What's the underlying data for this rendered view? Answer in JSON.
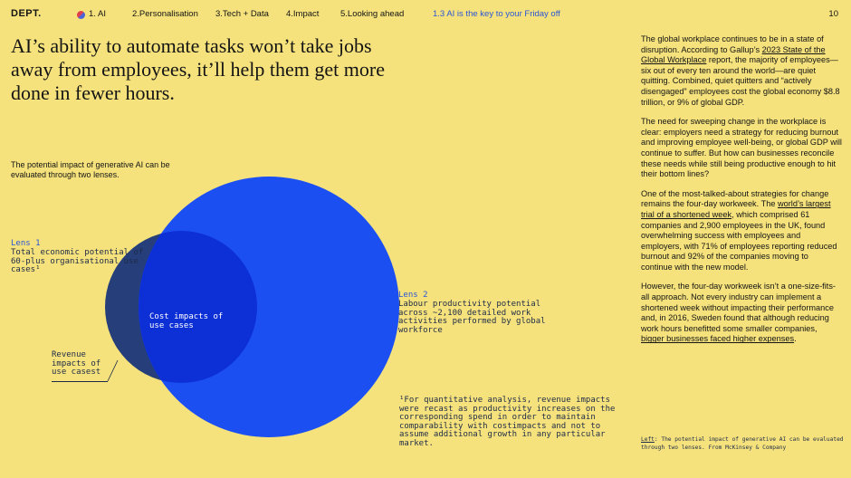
{
  "nav": {
    "logo": "DEPT.",
    "items": [
      "1. AI",
      "2.Personalisation",
      "3.Tech + Data",
      "4.Impact",
      "5.Looking ahead"
    ],
    "active": "1.3 AI is the key to your Friday off",
    "page_number": "10"
  },
  "headline": "AI’s ability to automate tasks won’t take jobs away from employees, it’ll help them get more done in fewer hours.",
  "lenses_intro": "The potential impact of generative AI can be evaluated through two lenses.",
  "diagram": {
    "lens1": {
      "title": "Lens 1",
      "body": "Total economic potential of 60-plus organisational use cases¹"
    },
    "lens2": {
      "title": "Lens 2",
      "body": "Labour productivity potential across ~2,100 detailed work activities performed by global workforce"
    },
    "revenue": "Revenue impacts of use casest",
    "cost": "Cost impacts of use cases",
    "colors": {
      "lens2_circle": "#1c4ff2",
      "cost_circle": "#0d2fd6",
      "revenue_crescent": "#263f7a"
    }
  },
  "footnote": "¹For quantitative analysis, revenue impacts were recast as productivity increases on the corresponding spend in order to maintain comparability with costimpacts and not to assume additional growth in any particular market.",
  "body": {
    "p1": {
      "pre": "The global workplace continues to be in a state of disruption. According to Gallup’s ",
      "link": "2023 State of the Global Workplace",
      "post": " report, the majority of employees—six out of every ten around the world—are quiet quitting. Combined, quiet quitters and “actively disengaged” employees cost the global economy $8.8 trillion, or 9% of global GDP."
    },
    "p2": "The need for sweeping change in the workplace is clear: employers need a strategy for reducing burnout and improving employee well-being, or global GDP will continue to suffer. But how can businesses reconcile these needs while still being productive enough to hit their bottom lines?",
    "p3": {
      "pre": "One of the most-talked-about strategies for change remains the four-day workweek. The ",
      "link": "world’s largest trial of a shortened week",
      "post": ", which comprised 61 companies and 2,900 employees in the UK, found overwhelming success with employees and employers, with 71% of employees reporting reduced burnout and 92% of the companies moving to continue with the new model."
    },
    "p4": {
      "pre": "However, the four-day workweek isn’t a one-size-fits-all approach. Not every industry can implement a shortened week without impacting their performance and, in 2016, Sweden found that although reducing work hours benefitted some smaller companies, ",
      "link": "bigger businesses faced higher expenses",
      "post": "."
    }
  },
  "caption": {
    "lead": "Left",
    "text": ": The potential impact of generative AI can be evaluated through two lenses. From McKinsey & Company"
  }
}
